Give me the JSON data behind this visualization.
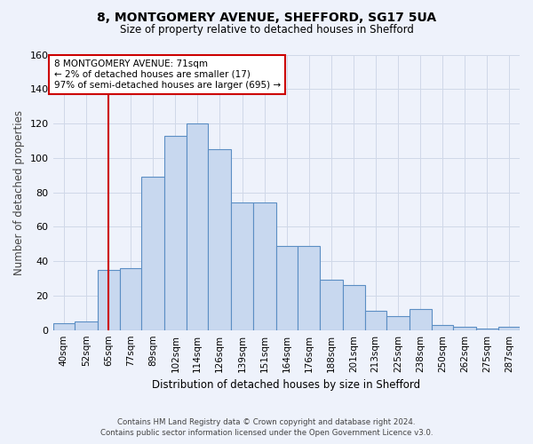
{
  "title_line1": "8, MONTGOMERY AVENUE, SHEFFORD, SG17 5UA",
  "title_line2": "Size of property relative to detached houses in Shefford",
  "xlabel": "Distribution of detached houses by size in Shefford",
  "ylabel": "Number of detached properties",
  "bin_labels": [
    "40sqm",
    "52sqm",
    "65sqm",
    "77sqm",
    "89sqm",
    "102sqm",
    "114sqm",
    "126sqm",
    "139sqm",
    "151sqm",
    "164sqm",
    "176sqm",
    "188sqm",
    "201sqm",
    "213sqm",
    "225sqm",
    "238sqm",
    "250sqm",
    "262sqm",
    "275sqm",
    "287sqm"
  ],
  "bin_edges": [
    40,
    52,
    65,
    77,
    89,
    102,
    114,
    126,
    139,
    151,
    164,
    176,
    188,
    201,
    213,
    225,
    238,
    250,
    262,
    275,
    287
  ],
  "bar_heights": [
    4,
    5,
    35,
    36,
    89,
    113,
    120,
    105,
    74,
    74,
    49,
    49,
    29,
    26,
    11,
    8,
    12,
    3,
    2,
    1,
    2
  ],
  "bar_color": "#c8d8ef",
  "bar_edge_color": "#5b8ec4",
  "vline_x": 71,
  "vline_color": "#cc0000",
  "ylim": [
    0,
    160
  ],
  "yticks": [
    0,
    20,
    40,
    60,
    80,
    100,
    120,
    140,
    160
  ],
  "annotation_text": "8 MONTGOMERY AVENUE: 71sqm\n← 2% of detached houses are smaller (17)\n97% of semi-detached houses are larger (695) →",
  "annotation_box_color": "#ffffff",
  "annotation_box_edge": "#cc0000",
  "footer_line1": "Contains HM Land Registry data © Crown copyright and database right 2024.",
  "footer_line2": "Contains public sector information licensed under the Open Government Licence v3.0.",
  "bg_color": "#eef2fb",
  "plot_bg_color": "#eef2fb",
  "grid_color": "#d0d8e8"
}
